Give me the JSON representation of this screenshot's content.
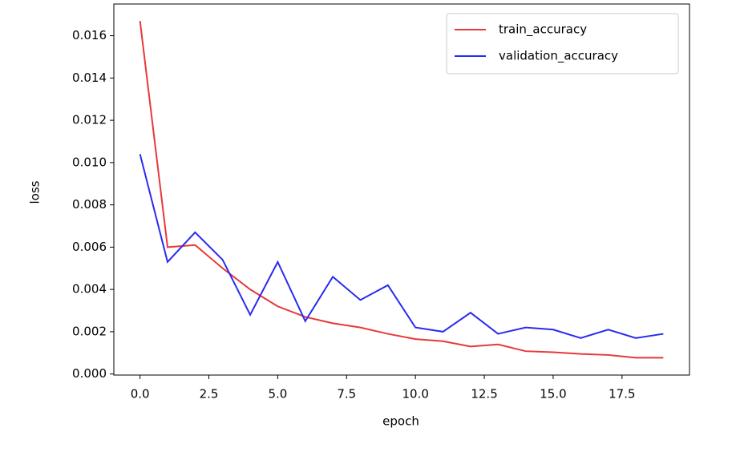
{
  "chart_data": {
    "type": "line",
    "xlabel": "epoch",
    "ylabel": "loss",
    "x": [
      0,
      1,
      2,
      3,
      4,
      5,
      6,
      7,
      8,
      9,
      10,
      11,
      12,
      13,
      14,
      15,
      16,
      17,
      18,
      19
    ],
    "series": [
      {
        "name": "train_accuracy",
        "color": "#e8383a",
        "values": [
          0.0167,
          0.006,
          0.0061,
          0.005,
          0.004,
          0.0032,
          0.0027,
          0.0024,
          0.0022,
          0.0019,
          0.00165,
          0.00155,
          0.0013,
          0.0014,
          0.00108,
          0.00103,
          0.00095,
          0.0009,
          0.00077,
          0.00077
        ]
      },
      {
        "name": "validation_accuracy",
        "color": "#2a2af0",
        "values": [
          0.0104,
          0.0053,
          0.0067,
          0.0054,
          0.0028,
          0.0053,
          0.0025,
          0.0046,
          0.0035,
          0.0042,
          0.0022,
          0.002,
          0.0029,
          0.0019,
          0.0022,
          0.0021,
          0.0017,
          0.0021,
          0.0017,
          0.0019
        ]
      }
    ],
    "xlim": [
      -0.95,
      19.95
    ],
    "ylim": [
      -5e-05,
      0.0175
    ],
    "xticks": [
      {
        "value": 0,
        "label": "0.0"
      },
      {
        "value": 2.5,
        "label": "2.5"
      },
      {
        "value": 5,
        "label": "5.0"
      },
      {
        "value": 7.5,
        "label": "7.5"
      },
      {
        "value": 10,
        "label": "10.0"
      },
      {
        "value": 12.5,
        "label": "12.5"
      },
      {
        "value": 15,
        "label": "15.0"
      },
      {
        "value": 17.5,
        "label": "17.5"
      }
    ],
    "yticks": [
      {
        "value": 0,
        "label": "0.000"
      },
      {
        "value": 0.002,
        "label": "0.002"
      },
      {
        "value": 0.004,
        "label": "0.004"
      },
      {
        "value": 0.006,
        "label": "0.006"
      },
      {
        "value": 0.008,
        "label": "0.008"
      },
      {
        "value": 0.01,
        "label": "0.010"
      },
      {
        "value": 0.012,
        "label": "0.012"
      },
      {
        "value": 0.014,
        "label": "0.014"
      },
      {
        "value": 0.016,
        "label": "0.016"
      }
    ],
    "legend": "upper right"
  }
}
